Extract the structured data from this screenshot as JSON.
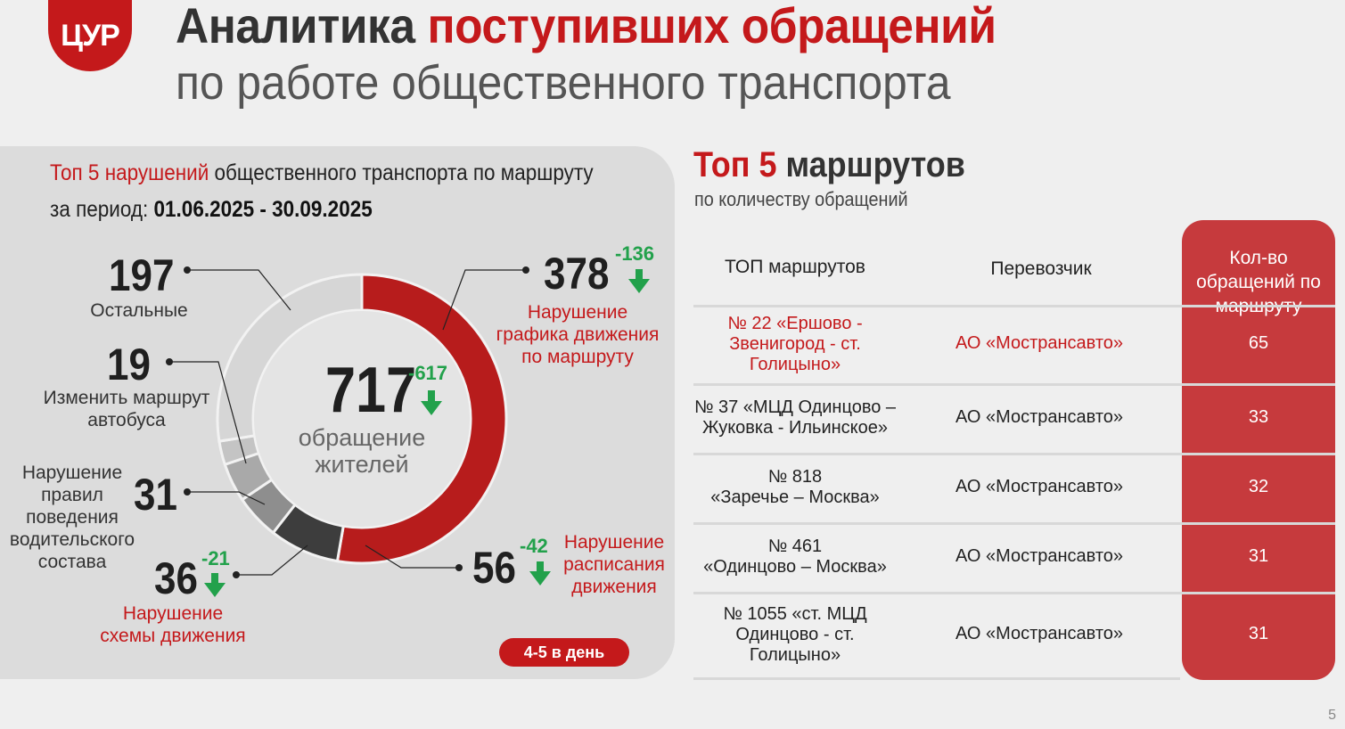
{
  "logo": "ЦУР",
  "title": {
    "part1": "Аналитика ",
    "part2": "поступивших обращений",
    "line2": "по работе общественного транспорта"
  },
  "left_panel": {
    "title_red": "Топ 5 нарушений",
    "title_rest": " общественного транспорта по маршруту",
    "period_label": "за период: ",
    "period_value": "01.06.2025 - 30.09.2025",
    "total": {
      "value": "717",
      "delta": "-617",
      "label": "обращение жителей"
    },
    "segments": [
      {
        "value": "378",
        "delta": "-136",
        "label": "Нарушение графика движения по маршруту",
        "color": "#b71c1c",
        "count": 378
      },
      {
        "value": "56",
        "delta": "-42",
        "label": "Нарушение расписания движения",
        "color": "#3d3d3d",
        "count": 56
      },
      {
        "value": "36",
        "delta": "-21",
        "label": "Нарушение схемы движения",
        "color": "#8e8e8e",
        "count": 36
      },
      {
        "value": "31",
        "delta": "",
        "label": "Нарушение правил поведения водительского состава",
        "color": "#a9a9a9",
        "count": 31
      },
      {
        "value": "19",
        "delta": "",
        "label": "Изменить маршрут автобуса",
        "color": "#c4c4c4",
        "count": 19
      },
      {
        "value": "197",
        "delta": "",
        "label": "Остальные",
        "color": "#d6d6d6",
        "count": 197
      }
    ],
    "badge": "4-5 в день"
  },
  "right_panel": {
    "title_red": "Топ 5",
    "title_rest": " маршрутов",
    "subtitle": "по количеству обращений",
    "headers": [
      "ТОП маршрутов",
      "Перевозчик",
      "Кол-во обращений по маршруту"
    ],
    "rows": [
      {
        "route": [
          "№ 22  «Ершово -",
          "Звенигород - ст.",
          "Голицыно»"
        ],
        "carrier": "АО «Мострансавто»",
        "count": "65",
        "highlight": true
      },
      {
        "route": [
          "№ 37 «МЦД Одинцово –",
          "Жуковка - Ильинское»"
        ],
        "carrier": "АО «Мострансавто»",
        "count": "33",
        "highlight": false
      },
      {
        "route": [
          "№ 818",
          "«Заречье – Москва»"
        ],
        "carrier": "АО «Мострансавто»",
        "count": "32",
        "highlight": false
      },
      {
        "route": [
          "№ 461",
          "«Одинцово – Москва»"
        ],
        "carrier": "АО «Мострансавто»",
        "count": "31",
        "highlight": false
      },
      {
        "route": [
          "№ 1055  «ст. МЦД",
          "Одинцово - ст.",
          "Голицыно»"
        ],
        "carrier": "АО «Мострансавто»",
        "count": "31",
        "highlight": false
      }
    ]
  },
  "page_number": "5",
  "chart_data": {
    "type": "pie",
    "title": "Топ 5 нарушений общественного транспорта по маршруту",
    "categories": [
      "Нарушение графика движения по маршруту",
      "Нарушение расписания движения",
      "Нарушение схемы движения",
      "Нарушение правил поведения водительского состава",
      "Изменить маршрут автобуса",
      "Остальные"
    ],
    "values": [
      378,
      56,
      36,
      31,
      19,
      197
    ],
    "total": 717
  }
}
